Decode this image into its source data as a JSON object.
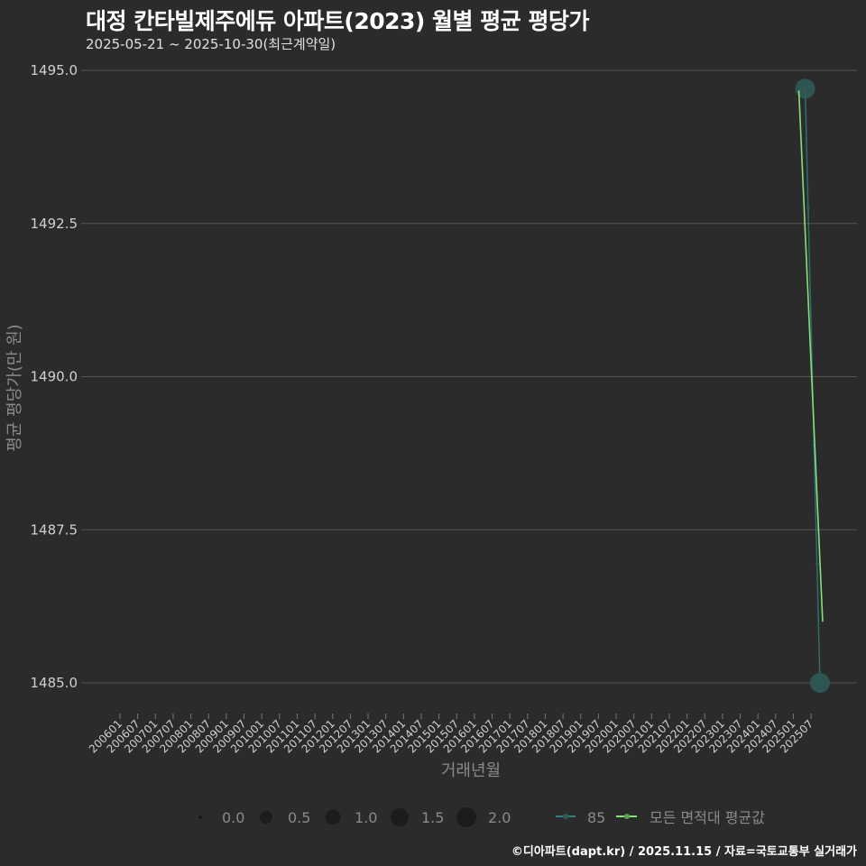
{
  "header": {
    "title": "대정 칸타빌제주에듀 아파트(2023) 월별 평균 평당가",
    "subtitle": "2025-05-21 ~ 2025-10-30(최근계약일)"
  },
  "caption": "©디아파트(dapt.kr) / 2025.11.15 / 자료=국토교통부 실거래가",
  "colors": {
    "background": "#2b2b2b",
    "grid": "#555555",
    "series_85": "#2f7f7a",
    "series_85_point": "#2f5a57",
    "series_avg": "#86e07a",
    "size_legend_dot": "#1c1c1c"
  },
  "chart_data": {
    "type": "line",
    "title": "대정 칸타빌제주에듀 아파트(2023) 월별 평균 평당가",
    "subtitle": "2025-05-21 ~ 2025-10-30(최근계약일)",
    "xlabel": "거래년월",
    "ylabel": "평균 평당가(만 원)",
    "ylim": [
      1485.0,
      1495.0
    ],
    "yticks": [
      "1485.0",
      "1487.5",
      "1490.0",
      "1492.5",
      "1495.0"
    ],
    "xticks": [
      "200601",
      "200607",
      "200701",
      "200707",
      "200801",
      "200807",
      "200901",
      "200907",
      "201001",
      "201007",
      "201101",
      "201107",
      "201201",
      "201207",
      "201301",
      "201307",
      "201401",
      "201407",
      "201501",
      "201507",
      "201601",
      "201607",
      "201701",
      "201707",
      "201801",
      "201807",
      "201901",
      "201907",
      "202001",
      "202007",
      "202101",
      "202107",
      "202201",
      "202207",
      "202301",
      "202307",
      "202401",
      "202407",
      "202501",
      "202507"
    ],
    "grid": true,
    "legend_position": "bottom",
    "series": [
      {
        "name": "85",
        "x": [
          "202505",
          "202506",
          "202507",
          "202508",
          "202509",
          "202510"
        ],
        "values": [
          1494.7,
          1492.76,
          1490.82,
          1488.88,
          1486.94,
          1485.0
        ],
        "counts": [
          2,
          0,
          0,
          0,
          0,
          2
        ]
      },
      {
        "name": "모든 면적대 평균값",
        "x": [
          "202505",
          "202510"
        ],
        "values": [
          1494.7,
          1486.0
        ]
      }
    ],
    "size_legend": {
      "title": "",
      "values": [
        "0.0",
        "0.5",
        "1.0",
        "1.5",
        "2.0"
      ]
    }
  }
}
